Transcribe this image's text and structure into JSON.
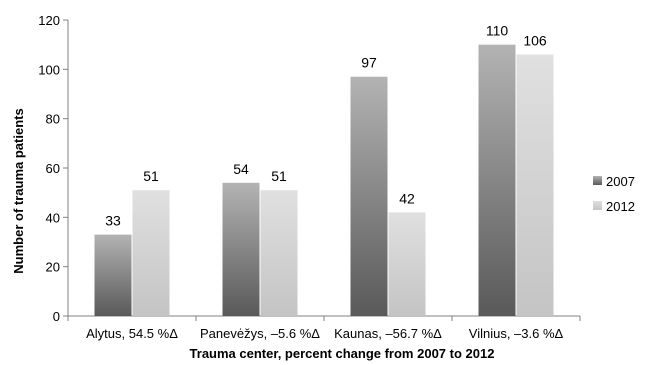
{
  "chart_data": {
    "type": "bar",
    "categories": [
      "Alytus, 54.5 %Δ",
      "Panevėžys, –5.6 %Δ",
      "Kaunas, –56.7 %Δ",
      "Vilnius, –3.6 %Δ"
    ],
    "series": [
      {
        "name": "2007",
        "values": [
          33,
          54,
          97,
          110
        ],
        "data_labels": [
          "33",
          "54",
          "97",
          "110"
        ]
      },
      {
        "name": "2012",
        "values": [
          51,
          51,
          42,
          106
        ],
        "data_labels": [
          "51",
          "51",
          "42",
          "106"
        ]
      }
    ],
    "title": "",
    "xlabel": "Trauma center, percent change from 2007 to 2012",
    "ylabel": "Number of trauma patients",
    "ylim": [
      0,
      120
    ],
    "yticks": [
      "0",
      "20",
      "40",
      "60",
      "80",
      "100",
      "120"
    ],
    "grid": false,
    "legend_position": "right",
    "colors": {
      "series_2007_light": "#b3b3b3",
      "series_2007_dark": "#595959",
      "series_2012_light": "#e0e0e0",
      "series_2012_dark": "#c4c4c4",
      "axis": "#808080"
    }
  }
}
